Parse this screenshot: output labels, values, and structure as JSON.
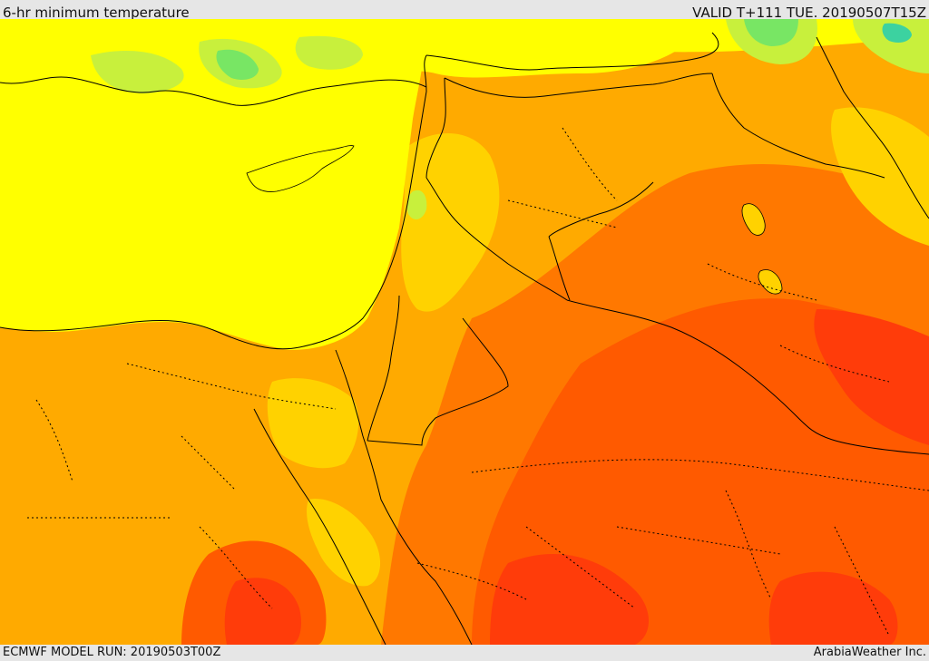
{
  "header": {
    "title": "6-hr minimum temperature",
    "valid": "VALID T+111 TUE. 20190507T15Z"
  },
  "footer": {
    "model_run": "ECMWF MODEL RUN: 20190503T00Z",
    "credit": "ArabiaWeather Inc."
  },
  "colors": {
    "sea_yellow": "#ffff00",
    "light_orange": "#ffd200",
    "orange": "#ffaa00",
    "dark_orange": "#ff7800",
    "red_orange": "#ff5a00",
    "red": "#ff3c0a",
    "pale_green": "#c8f03c",
    "green": "#78e664",
    "teal": "#3cd2a0",
    "coastline": "#000000"
  },
  "map": {
    "field": "minimum temperature",
    "region": "Eastern Mediterranean and Middle East",
    "borders": "solid country outlines, dotted internal boundaries"
  }
}
